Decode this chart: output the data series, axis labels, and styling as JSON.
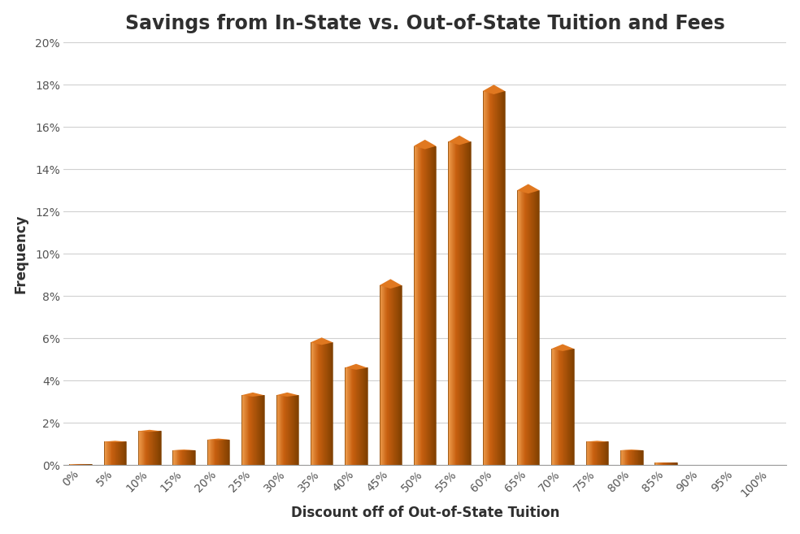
{
  "title": "Savings from In-State vs. Out-of-State Tuition and Fees",
  "xlabel": "Discount off of Out-of-State Tuition",
  "ylabel": "Frequency",
  "categories": [
    "0%",
    "5%",
    "10%",
    "15%",
    "20%",
    "25%",
    "30%",
    "35%",
    "40%",
    "45%",
    "50%",
    "55%",
    "60%",
    "65%",
    "70%",
    "75%",
    "80%",
    "85%",
    "90%",
    "95%",
    "100%"
  ],
  "values": [
    0.05,
    1.1,
    1.6,
    0.7,
    1.2,
    3.3,
    3.3,
    5.8,
    4.6,
    8.5,
    15.1,
    15.3,
    17.7,
    13.0,
    5.5,
    1.1,
    0.7,
    0.1,
    0.0,
    0.0,
    0.0
  ],
  "bar_color_left": "#F0A050",
  "bar_color_mid": "#C86010",
  "bar_color_right": "#804000",
  "bar_top_color": "#E07820",
  "background_color": "#FFFFFF",
  "grid_color": "#D0D0D0",
  "ylim": [
    0,
    20
  ],
  "yticks": [
    0,
    2,
    4,
    6,
    8,
    10,
    12,
    14,
    16,
    18,
    20
  ],
  "title_fontsize": 17,
  "axis_label_fontsize": 12,
  "tick_fontsize": 10,
  "title_color": "#2F2F2F",
  "axis_label_color": "#2F2F2F",
  "tick_color": "#555555"
}
